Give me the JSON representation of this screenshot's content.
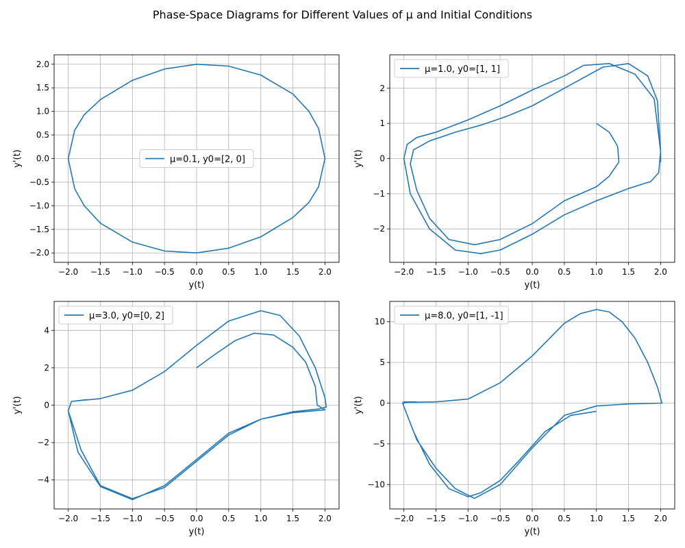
{
  "figure": {
    "title": "Phase-Space Diagrams for Different Values of μ and Initial Conditions"
  },
  "colors": {
    "series": "#1f77b4",
    "grid": "#b0b0b0",
    "axes": "#000000",
    "legend_border": "#cccccc"
  },
  "chart_data": [
    {
      "type": "line",
      "xlabel": "y(t)",
      "ylabel": "y'(t)",
      "xlim": [
        -2.22,
        2.22
      ],
      "ylim": [
        -2.2,
        2.2
      ],
      "xticks": [
        -2.0,
        -1.5,
        -1.0,
        -0.5,
        0.0,
        0.5,
        1.0,
        1.5,
        2.0
      ],
      "xtick_labels": [
        "−2.0",
        "−1.5",
        "−1.0",
        "−0.5",
        "0.0",
        "0.5",
        "1.0",
        "1.5",
        "2.0"
      ],
      "yticks": [
        -2.0,
        -1.5,
        -1.0,
        -0.5,
        0.0,
        0.5,
        1.0,
        1.5,
        2.0
      ],
      "ytick_labels": [
        "−2.0",
        "−1.5",
        "−1.0",
        "−0.5",
        "0.0",
        "0.5",
        "1.0",
        "1.5",
        "2.0"
      ],
      "grid": true,
      "legend_position": "center",
      "series": [
        {
          "name": "μ=0.1, y0=[2, 0]",
          "x": [
            2.0,
            1.9,
            1.75,
            1.5,
            1.0,
            0.5,
            0.0,
            -0.5,
            -1.0,
            -1.5,
            -1.75,
            -1.9,
            -2.0,
            -1.9,
            -1.75,
            -1.5,
            -1.0,
            -0.5,
            0.0,
            0.5,
            1.0,
            1.5,
            1.75,
            1.9,
            2.0
          ],
          "y": [
            0.0,
            0.64,
            1.0,
            1.37,
            1.77,
            1.96,
            2.0,
            1.9,
            1.66,
            1.25,
            0.93,
            0.6,
            0.0,
            -0.64,
            -1.0,
            -1.37,
            -1.77,
            -1.96,
            -2.0,
            -1.9,
            -1.66,
            -1.25,
            -0.93,
            -0.6,
            0.0
          ]
        }
      ]
    },
    {
      "type": "line",
      "xlabel": "y(t)",
      "ylabel": "y'(t)",
      "xlim": [
        -2.22,
        2.22
      ],
      "ylim": [
        -2.95,
        2.95
      ],
      "xticks": [
        -2.0,
        -1.5,
        -1.0,
        -0.5,
        0.0,
        0.5,
        1.0,
        1.5,
        2.0
      ],
      "xtick_labels": [
        "−2.0",
        "−1.5",
        "−1.0",
        "−0.5",
        "0.0",
        "0.5",
        "1.0",
        "1.5",
        "2.0"
      ],
      "yticks": [
        -2,
        -1,
        0,
        1,
        2
      ],
      "ytick_labels": [
        "−2",
        "−1",
        "0",
        "1",
        "2"
      ],
      "grid": true,
      "legend_position": "upper left",
      "series": [
        {
          "name": "μ=1.0, y0=[1, 1]",
          "x": [
            1.0,
            1.2,
            1.33,
            1.35,
            1.2,
            1.0,
            0.5,
            0.0,
            -0.5,
            -0.9,
            -1.3,
            -1.6,
            -1.8,
            -1.9,
            -1.85,
            -1.6,
            -1.2,
            -0.8,
            -0.4,
            0.0,
            0.4,
            0.8,
            1.1,
            1.5,
            1.8,
            1.95,
            2.0,
            1.97,
            1.85,
            1.5,
            1.0,
            0.5,
            0.0,
            -0.5,
            -0.8,
            -1.2,
            -1.6,
            -1.9,
            -2.0,
            -1.95,
            -1.8,
            -1.5,
            -1.0,
            -0.5,
            0.0,
            0.5,
            0.8,
            1.2,
            1.6,
            1.9,
            2.0,
            2.0
          ],
          "y": [
            1.0,
            0.75,
            0.35,
            -0.1,
            -0.5,
            -0.8,
            -1.2,
            -1.85,
            -2.3,
            -2.45,
            -2.3,
            -1.7,
            -0.9,
            -0.15,
            0.25,
            0.5,
            0.75,
            0.95,
            1.2,
            1.5,
            1.9,
            2.3,
            2.6,
            2.7,
            2.35,
            1.65,
            0.2,
            -0.4,
            -0.65,
            -0.85,
            -1.2,
            -1.6,
            -2.15,
            -2.6,
            -2.7,
            -2.6,
            -2.0,
            -1.0,
            0.0,
            0.4,
            0.6,
            0.75,
            1.1,
            1.5,
            1.95,
            2.35,
            2.65,
            2.7,
            2.4,
            1.7,
            0.2,
            -0.1
          ]
        }
      ]
    },
    {
      "type": "line",
      "xlabel": "y(t)",
      "ylabel": "y'(t)",
      "xlim": [
        -2.22,
        2.22
      ],
      "ylim": [
        -5.55,
        5.55
      ],
      "xticks": [
        -2.0,
        -1.5,
        -1.0,
        -0.5,
        0.0,
        0.5,
        1.0,
        1.5,
        2.0
      ],
      "xtick_labels": [
        "−2.0",
        "−1.5",
        "−1.0",
        "−0.5",
        "0.0",
        "0.5",
        "1.0",
        "1.5",
        "2.0"
      ],
      "yticks": [
        -4,
        -2,
        0,
        2,
        4
      ],
      "ytick_labels": [
        "−4",
        "−2",
        "0",
        "2",
        "4"
      ],
      "grid": true,
      "legend_position": "upper left",
      "series": [
        {
          "name": "μ=3.0, y0=[0, 2]",
          "x": [
            0.0,
            0.3,
            0.6,
            0.9,
            1.2,
            1.5,
            1.7,
            1.85,
            1.88,
            2.0,
            1.5,
            1.0,
            0.5,
            0.0,
            -0.5,
            -1.0,
            -1.5,
            -1.85,
            -2.0,
            -1.95,
            -1.5,
            -1.0,
            -0.5,
            0.0,
            0.5,
            1.0,
            1.3,
            1.6,
            1.85,
            2.0,
            2.02,
            1.9,
            1.5,
            1.0,
            0.5,
            0.0,
            -0.5,
            -1.0,
            -1.5,
            -1.8,
            -2.0,
            -1.95,
            -1.7
          ],
          "y": [
            2.0,
            2.75,
            3.45,
            3.85,
            3.75,
            3.1,
            2.3,
            1.0,
            0.0,
            -0.25,
            -0.4,
            -0.75,
            -1.5,
            -2.9,
            -4.3,
            -5.05,
            -4.35,
            -2.5,
            -0.3,
            0.2,
            0.35,
            0.8,
            1.8,
            3.2,
            4.5,
            5.05,
            4.8,
            3.7,
            2.0,
            0.4,
            -0.1,
            -0.2,
            -0.35,
            -0.75,
            -1.6,
            -3.0,
            -4.4,
            -5.0,
            -4.3,
            -2.4,
            -0.3,
            0.2,
            0.3
          ]
        }
      ]
    },
    {
      "type": "line",
      "xlabel": "y(t)",
      "ylabel": "y'(t)",
      "xlim": [
        -2.22,
        2.22
      ],
      "ylim": [
        -13.0,
        12.5
      ],
      "xticks": [
        -2.0,
        -1.5,
        -1.0,
        -0.5,
        0.0,
        0.5,
        1.0,
        1.5,
        2.0
      ],
      "xtick_labels": [
        "−2.0",
        "−1.5",
        "−1.0",
        "−0.5",
        "0.0",
        "0.5",
        "1.0",
        "1.5",
        "2.0"
      ],
      "yticks": [
        -10,
        -5,
        0,
        5,
        10
      ],
      "ytick_labels": [
        "−10",
        "−5",
        "0",
        "5",
        "10"
      ],
      "grid": true,
      "legend_position": "upper left",
      "series": [
        {
          "name": "μ=8.0, y0=[1, -1]",
          "x": [
            1.0,
            0.6,
            0.2,
            -0.2,
            -0.5,
            -0.8,
            -1.0,
            -1.3,
            -1.6,
            -1.85,
            -2.02,
            -1.95,
            -1.5,
            -1.0,
            -0.5,
            0.0,
            0.5,
            0.75,
            1.0,
            1.2,
            1.4,
            1.6,
            1.8,
            1.95,
            2.02,
            1.5,
            1.0,
            0.5,
            0.0,
            -0.5,
            -0.9,
            -1.2,
            -1.5,
            -1.8,
            -2.02,
            -2.0,
            -1.8
          ],
          "y": [
            -1.0,
            -1.5,
            -3.5,
            -7.0,
            -9.5,
            -11.0,
            -11.5,
            -10.5,
            -7.5,
            -3.5,
            0.0,
            0.1,
            0.15,
            0.5,
            2.5,
            5.8,
            9.8,
            11.0,
            11.5,
            11.2,
            10.0,
            8.0,
            5.0,
            2.0,
            0.0,
            -0.1,
            -0.35,
            -1.5,
            -5.5,
            -10.0,
            -11.7,
            -10.5,
            -8.0,
            -4.5,
            0.0,
            0.15,
            0.15
          ]
        }
      ]
    }
  ]
}
